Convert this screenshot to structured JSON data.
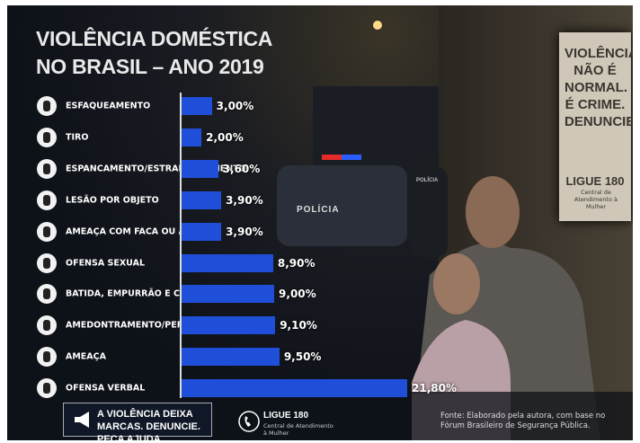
{
  "chart_data": {
    "type": "bar",
    "orientation": "horizontal",
    "title": "VIOLÊNCIA DOMÉSTICA NO BRASIL – ANO 2019",
    "categories": [
      "ESFAQUEAMENTO",
      "TIRO",
      "ESPANCAMENTO/ESTRANGULAMENTO",
      "LESÃO POR OBJETO",
      "AMEAÇA COM FACA OU ARMA",
      "OFENSA SEXUAL",
      "BATIDA, EMPURRÃO E CHUTE",
      "AMEDONTRAMENTO/PERSEGUIÇÃO",
      "AMEAÇA",
      "OFENSA VERBAL"
    ],
    "values": [
      3.0,
      2.0,
      3.6,
      3.9,
      3.9,
      8.9,
      9.0,
      9.1,
      9.5,
      21.8
    ],
    "value_labels": [
      "3,00%",
      "2,00%",
      "3,60%",
      "3,90%",
      "3,90%",
      "8,90%",
      "9,00%",
      "9,10%",
      "9,50%",
      "21,80%"
    ],
    "color": "#1f4fd8"
  },
  "poster": {
    "text": "VIOLÊNCIA NÃO É NORMAL. É CRIME. DENUNCIE.",
    "hotline": "LIGUE 180",
    "hotline_note": "Central de Atendimento à Mulher"
  },
  "scene": {
    "car_label": "POLÍCIA",
    "vest_label": "POLÍCIA"
  },
  "footer": {
    "message": "A VIOLÊNCIA DEIXA MARCAS. DENUNCIE. PEÇA AJUDA.",
    "hotline": "LIGUE 180",
    "hotline_note": "Central de Atendimento à Mulher",
    "source": "Fonte: Elaborado pela autora, com base no Fórum Brasileiro de Segurança Pública."
  }
}
